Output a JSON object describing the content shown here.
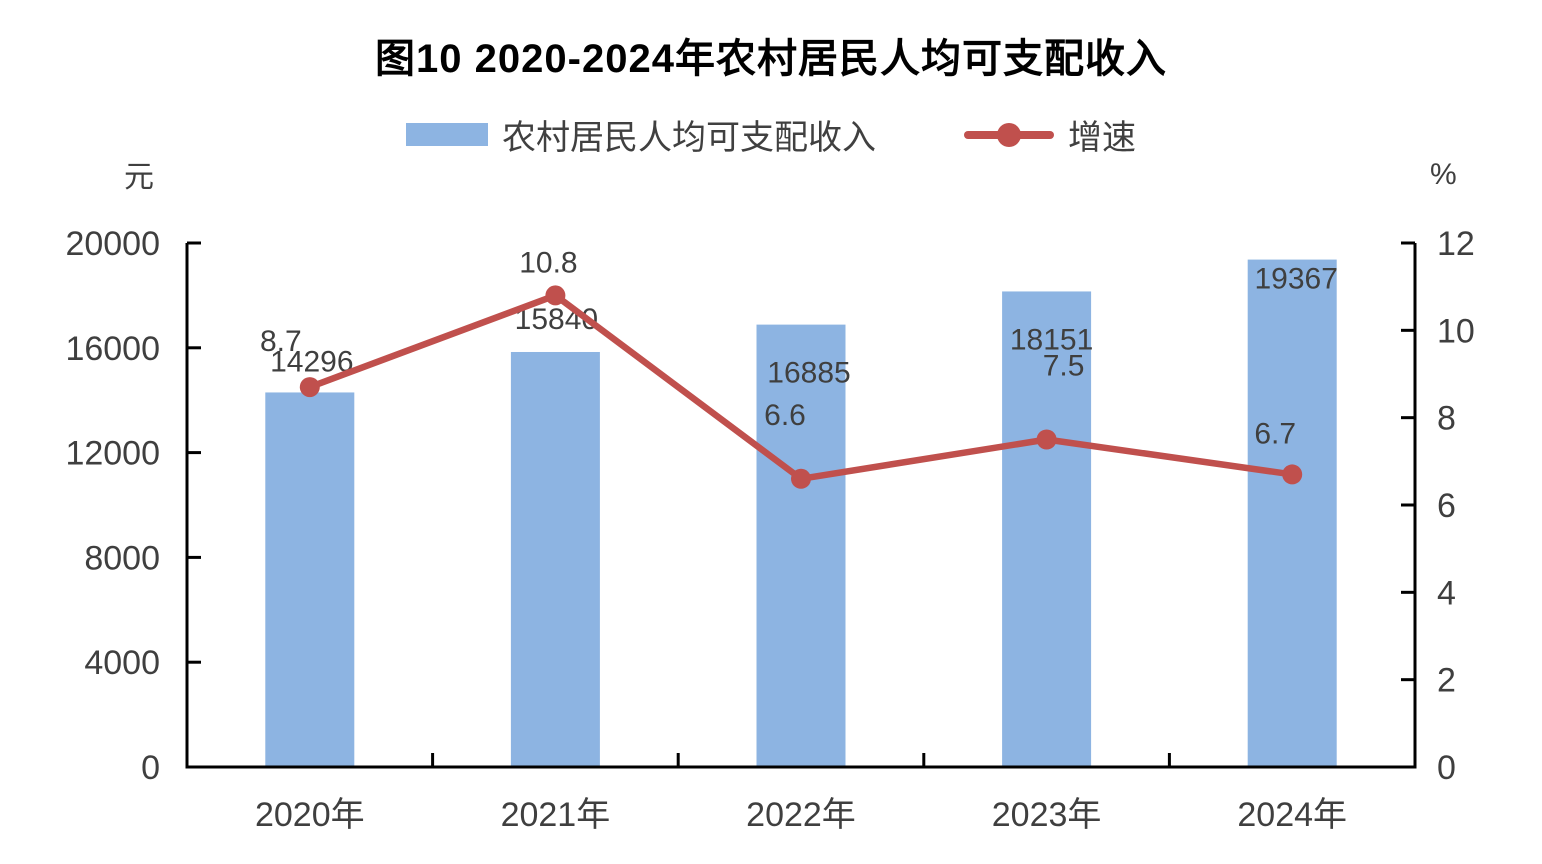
{
  "title": "图10 2020-2024年农村居民人均可支配收入",
  "colors": {
    "bar": "#8DB4E2",
    "line": "#C0504D",
    "axis": "#000000",
    "label_text": "#3F3F3F"
  },
  "chart_data": {
    "type": "bar+line",
    "title": "图10 2020-2024年农村居民人均可支配收入",
    "categories": [
      "2020年",
      "2021年",
      "2022年",
      "2023年",
      "2024年"
    ],
    "series": [
      {
        "name": "农村居民人均可支配收入",
        "type": "bar",
        "axis": "left",
        "color": "#8DB4E2",
        "values": [
          14296,
          15840,
          16885,
          18151,
          19367
        ]
      },
      {
        "name": "增速",
        "type": "line",
        "axis": "right",
        "color": "#C0504D",
        "values": [
          8.7,
          10.8,
          6.6,
          7.5,
          6.7
        ]
      }
    ],
    "left_axis_label": "元",
    "right_axis_label": "%",
    "left_ylim": [
      0,
      20000
    ],
    "right_ylim": [
      0,
      12
    ],
    "left_ticks": [
      0,
      4000,
      8000,
      12000,
      16000,
      20000
    ],
    "right_ticks": [
      0,
      2,
      4,
      6,
      8,
      10,
      12
    ],
    "grid": false,
    "legend_position": "top"
  }
}
